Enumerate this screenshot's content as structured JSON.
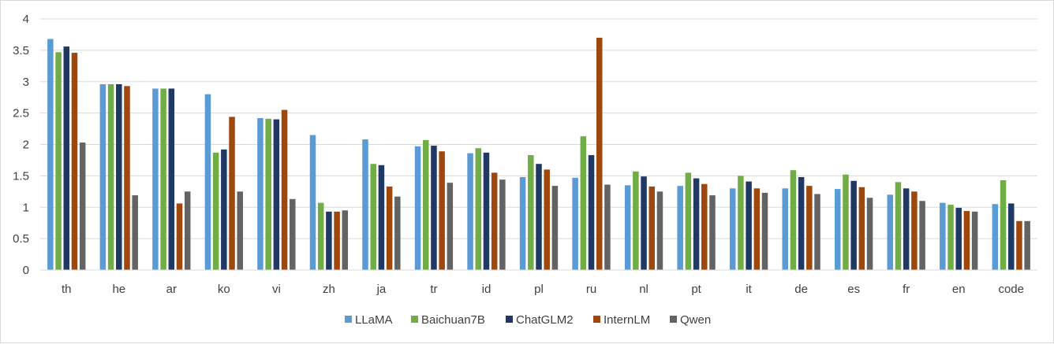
{
  "chart_data": {
    "type": "bar",
    "categories": [
      "th",
      "he",
      "ar",
      "ko",
      "vi",
      "zh",
      "ja",
      "tr",
      "id",
      "pl",
      "ru",
      "nl",
      "pt",
      "it",
      "de",
      "es",
      "fr",
      "en",
      "code"
    ],
    "series": [
      {
        "name": "LLaMA",
        "color": "#5b9bd5",
        "values": [
          3.68,
          2.96,
          2.89,
          2.8,
          2.42,
          2.15,
          2.08,
          1.97,
          1.86,
          1.48,
          1.47,
          1.35,
          1.34,
          1.3,
          1.3,
          1.29,
          1.2,
          1.07,
          1.05
        ]
      },
      {
        "name": "Baichuan7B",
        "color": "#70ad47",
        "values": [
          3.47,
          2.96,
          2.89,
          1.87,
          2.41,
          1.07,
          1.69,
          2.07,
          1.94,
          1.83,
          2.13,
          1.57,
          1.55,
          1.5,
          1.59,
          1.52,
          1.4,
          1.04,
          1.43
        ]
      },
      {
        "name": "ChatGLM2",
        "color": "#203864",
        "values": [
          3.56,
          2.96,
          2.89,
          1.92,
          2.4,
          0.93,
          1.67,
          1.98,
          1.87,
          1.69,
          1.83,
          1.49,
          1.46,
          1.41,
          1.48,
          1.42,
          1.3,
          0.99,
          1.06
        ]
      },
      {
        "name": "InternLM",
        "color": "#9e480e",
        "values": [
          3.46,
          2.93,
          1.06,
          2.44,
          2.55,
          0.93,
          1.33,
          1.89,
          1.55,
          1.6,
          3.7,
          1.33,
          1.37,
          1.3,
          1.34,
          1.32,
          1.25,
          0.94,
          0.78
        ]
      },
      {
        "name": "Qwen",
        "color": "#636363",
        "values": [
          2.03,
          1.19,
          1.25,
          1.25,
          1.13,
          0.95,
          1.17,
          1.39,
          1.44,
          1.34,
          1.36,
          1.25,
          1.19,
          1.23,
          1.21,
          1.15,
          1.1,
          0.93,
          0.78
        ]
      }
    ],
    "y_ticks": [
      "0",
      "0.5",
      "1",
      "1.5",
      "2",
      "2.5",
      "3",
      "3.5",
      "4"
    ],
    "ylim": [
      0,
      4
    ],
    "grid": true,
    "legend_position": "bottom"
  }
}
